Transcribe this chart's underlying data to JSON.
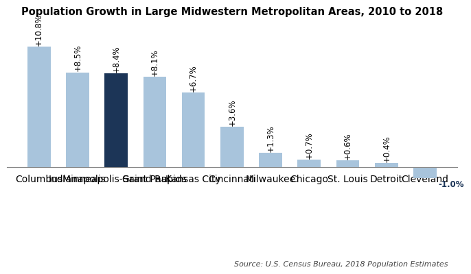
{
  "title": "Population Growth in Large Midwestern Metropolitan Areas, 2010 to 2018",
  "categories": [
    "Columbus",
    "Indianapolis",
    "Minneapolis-Saint Paul",
    "Grand Rapids",
    "Kansas City",
    "Cincinnati",
    "Milwaukee",
    "Chicago",
    "St. Louis",
    "Detroit",
    "Cleveland"
  ],
  "values": [
    10.8,
    8.5,
    8.4,
    8.1,
    6.7,
    3.6,
    1.3,
    0.7,
    0.6,
    0.4,
    -1.0
  ],
  "labels": [
    "+10.8%",
    "+8.5%",
    "+8.4%",
    "+8.1%",
    "+6.7%",
    "+3.6%",
    "+1.3%",
    "+0.7%",
    "+0.6%",
    "+0.4%",
    "-1.0%"
  ],
  "bar_colors": [
    "#a8c4dc",
    "#a8c4dc",
    "#1c3557",
    "#a8c4dc",
    "#a8c4dc",
    "#a8c4dc",
    "#a8c4dc",
    "#a8c4dc",
    "#a8c4dc",
    "#a8c4dc",
    "#a8c4dc"
  ],
  "negative_label_color": "#1c3557",
  "source_text": "Source: U.S. Census Bureau, 2018 Population Estimates",
  "ylim": [
    -1.8,
    13.0
  ],
  "label_fontsize": 8.5,
  "title_fontsize": 10.5,
  "source_fontsize": 8,
  "tick_fontsize": 8.5,
  "background_color": "#ffffff",
  "bar_width": 0.6
}
